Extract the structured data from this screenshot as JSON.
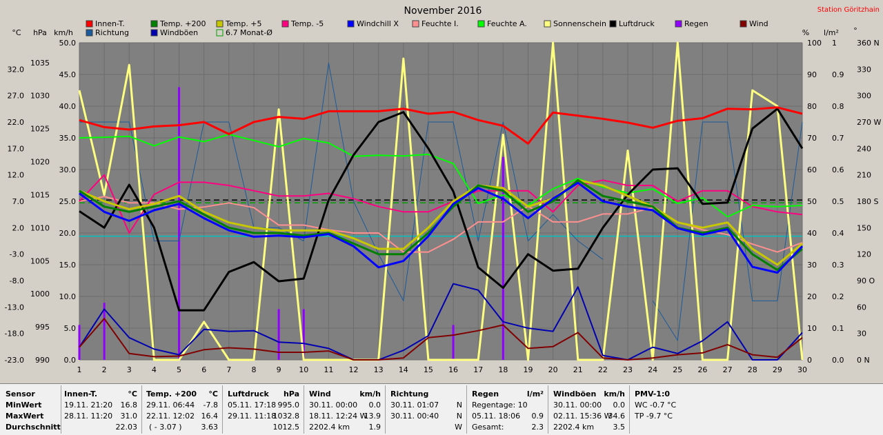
{
  "chart_data": {
    "type": "line",
    "title": "November 2016",
    "station": "Station Göritzhain",
    "x": [
      1,
      2,
      3,
      4,
      5,
      6,
      7,
      8,
      9,
      10,
      11,
      12,
      13,
      14,
      15,
      16,
      17,
      18,
      19,
      20,
      21,
      22,
      23,
      24,
      25,
      26,
      27,
      28,
      29,
      30
    ],
    "axes": {
      "left_c": {
        "unit": "°C",
        "min": -23,
        "max": 37,
        "ticks": [
          "32.0",
          "27.0",
          "22.0",
          "17.0",
          "12.0",
          "7.0",
          "2.0",
          "-3.0",
          "-8.0",
          "-13.0",
          "-18.0",
          "-23.0"
        ],
        "tick_values": [
          32,
          27,
          22,
          17,
          12,
          7,
          2,
          -3,
          -8,
          -13,
          -18,
          -23
        ]
      },
      "left_hpa": {
        "unit": "hPa",
        "min": 990,
        "max": 1038,
        "ticks": [
          "1035",
          "1030",
          "1025",
          "1020",
          "1015",
          "1010",
          "1005",
          "1000",
          "995",
          "990"
        ],
        "tick_values": [
          1035,
          1030,
          1025,
          1020,
          1015,
          1010,
          1005,
          1000,
          995,
          990
        ]
      },
      "left_kmh": {
        "unit": "km/h",
        "min": 0,
        "max": 50,
        "ticks": [
          "50.0",
          "45.0",
          "40.0",
          "35.0",
          "30.0",
          "25.0",
          "20.0",
          "15.0",
          "10.0",
          "5.0",
          "0.0"
        ],
        "tick_values": [
          50,
          45,
          40,
          35,
          30,
          25,
          20,
          15,
          10,
          5,
          0
        ]
      },
      "right_pct": {
        "unit": "%",
        "min": 0,
        "max": 100,
        "ticks": [
          "100",
          "90",
          "80",
          "70",
          "60",
          "50",
          "40",
          "30",
          "20",
          "10",
          "0"
        ],
        "tick_values": [
          100,
          90,
          80,
          70,
          60,
          50,
          40,
          30,
          20,
          10,
          0
        ]
      },
      "right_rain": {
        "unit": "l/m²",
        "min": 0,
        "max": 1,
        "ticks": [
          "1",
          "0.9",
          "0.8",
          "0.7",
          "0.6",
          "0.5",
          "0.4",
          "0.3",
          "0.2",
          "0.1",
          "0.0"
        ],
        "tick_values": [
          1,
          0.9,
          0.8,
          0.7,
          0.6,
          0.5,
          0.4,
          0.3,
          0.2,
          0.1,
          0
        ]
      },
      "right_deg": {
        "unit": "°",
        "min": 0,
        "max": 360,
        "ticks": [
          "360 N",
          "330",
          "300",
          "270 W",
          "240",
          "210",
          "180 S",
          "150",
          "120",
          "90 O",
          "60",
          "30",
          "0 N"
        ],
        "tick_values": [
          360,
          330,
          300,
          270,
          240,
          210,
          180,
          150,
          120,
          90,
          60,
          30,
          0
        ]
      }
    },
    "legend": [
      {
        "label": "Innen-T.",
        "color": "#ff0000"
      },
      {
        "label": "Temp. +200",
        "color": "#008000"
      },
      {
        "label": "Temp. +5",
        "color": "#c8c800"
      },
      {
        "label": "Temp. -5",
        "color": "#ff0080"
      },
      {
        "label": "Windchill X",
        "color": "#0000ff"
      },
      {
        "label": "Feuchte I.",
        "color": "#ff9090"
      },
      {
        "label": "Feuchte A.",
        "color": "#00ff00"
      },
      {
        "label": "Sonnenschein",
        "color": "#ffff80"
      },
      {
        "label": "Luftdruck",
        "color": "#000000"
      },
      {
        "label": "Regen",
        "color": "#9000ff"
      },
      {
        "label": "Wind",
        "color": "#800000"
      },
      {
        "label": "Richtung",
        "color": "#1a5a9a"
      },
      {
        "label": "Windböen",
        "color": "#0000b0"
      },
      {
        "label": "6.7 Monat-Ø",
        "color": "#00a000"
      }
    ],
    "series": [
      {
        "name": "Innen-T.",
        "axis": "left_kmh",
        "color": "#ff0000",
        "width": 3,
        "values": [
          37.8,
          36.7,
          36.3,
          36.8,
          37.0,
          37.5,
          35.6,
          37.5,
          38.3,
          38.0,
          39.2,
          39.2,
          39.2,
          39.6,
          38.8,
          39.1,
          37.8,
          36.9,
          34.1,
          39.0,
          38.5,
          38.0,
          37.4,
          36.6,
          37.7,
          38.1,
          39.6,
          39.5,
          39.8,
          38.8
        ]
      },
      {
        "name": "Feuchte A.",
        "axis": "right_pct",
        "color": "#00ff00",
        "width": 2,
        "values": [
          70,
          70.2,
          70.5,
          67.5,
          70.3,
          68.8,
          71.1,
          69.2,
          67.2,
          69.8,
          68.4,
          64.2,
          64.5,
          64.3,
          64.8,
          61.9,
          49.3,
          52,
          48.7,
          53.9,
          57.2,
          54.5,
          52.6,
          53.9,
          49.3,
          51.1,
          45.1,
          48.7,
          48.3,
          48.7
        ]
      },
      {
        "name": "Temp. -5",
        "axis": "left_c",
        "color": "#ff0080",
        "width": 2,
        "values": [
          7,
          12,
          1,
          8.3,
          10.6,
          10.6,
          10,
          9,
          8,
          8,
          8.5,
          7.5,
          6,
          5,
          5,
          7,
          9,
          9,
          9,
          5,
          10,
          11,
          10,
          10,
          7,
          9,
          9,
          6,
          5,
          4.5
        ]
      },
      {
        "name": "Feuchte I.",
        "axis": "right_pct",
        "color": "#ff9090",
        "width": 2,
        "values": [
          50,
          51.5,
          49.5,
          49.5,
          47.5,
          48.2,
          49.5,
          48,
          42.5,
          42.5,
          41,
          40,
          40,
          34,
          34,
          38,
          43.5,
          43.5,
          48.5,
          43.5,
          43.5,
          46,
          46,
          48,
          43.5,
          41,
          39.5,
          36.5,
          34,
          37
        ]
      },
      {
        "name": "Temp. +5",
        "axis": "left_c",
        "color": "#c8c800",
        "width": 3,
        "values": [
          9,
          7,
          5.5,
          6.5,
          8,
          5,
          3,
          2,
          1.5,
          1.5,
          1.5,
          0,
          -2,
          -2,
          2,
          7,
          10,
          9.5,
          6,
          7.5,
          11,
          10,
          8,
          6,
          3,
          2,
          3,
          -2,
          -5,
          -1
        ]
      },
      {
        "name": "Temp. +200",
        "axis": "left_c",
        "color": "#008000",
        "width": 3,
        "values": [
          9,
          6,
          5,
          6,
          7,
          4.5,
          2,
          1,
          1,
          0.5,
          1,
          -1,
          -3,
          -3,
          1,
          6,
          10,
          9,
          5,
          7,
          11,
          8,
          7,
          6,
          2,
          1,
          2,
          -3,
          -6,
          -2
        ]
      },
      {
        "name": "Windchill X",
        "axis": "left_c",
        "color": "#0000ff",
        "width": 3,
        "values": [
          8.5,
          5,
          3.3,
          5.3,
          6.5,
          3.8,
          1.5,
          0.3,
          0.5,
          0.2,
          0.8,
          -1.5,
          -5.5,
          -4.3,
          0.4,
          6.5,
          9.5,
          7.5,
          3.8,
          7.5,
          10.5,
          7,
          6,
          5.3,
          1.9,
          0.7,
          1.7,
          -5.4,
          -6.5,
          -1.5
        ]
      },
      {
        "name": "Luftdruck",
        "axis": "left_hpa",
        "color": "#000000",
        "width": 3,
        "values": [
          1012.5,
          1010,
          1016.5,
          1010,
          997.5,
          997.5,
          1003.3,
          1004.8,
          1001.9,
          1002.3,
          1014.2,
          1021,
          1026,
          1027.5,
          1022,
          1015.5,
          1004,
          1000.9,
          1006,
          1003.5,
          1003.8,
          1010,
          1015,
          1018.8,
          1019,
          1013.6,
          1013.8,
          1025,
          1028,
          1022
        ]
      },
      {
        "name": "Sonnenschein",
        "axis": "right_pct",
        "color": "#ffff80",
        "width": 3,
        "values": [
          85,
          52,
          93,
          0,
          0,
          12,
          0,
          0,
          79,
          0,
          0,
          0,
          0,
          95,
          0,
          0,
          0,
          71,
          0,
          100,
          0,
          0,
          66,
          0,
          100,
          0,
          0,
          85,
          80,
          0
        ]
      },
      {
        "name": "Windböen",
        "axis": "left_kmh",
        "color": "#0000b0",
        "width": 2,
        "values": [
          2,
          8,
          3.5,
          1.7,
          0.8,
          4.8,
          4.5,
          4.6,
          2.8,
          2.6,
          1.8,
          0,
          0,
          1.5,
          3.8,
          12,
          11,
          6,
          5,
          4.5,
          11.5,
          0.7,
          0,
          2,
          1,
          3,
          6,
          0,
          0,
          4.3
        ]
      },
      {
        "name": "Wind",
        "axis": "left_kmh",
        "color": "#800000",
        "width": 2,
        "values": [
          2,
          6.5,
          1,
          0.5,
          0.6,
          1.6,
          1.9,
          1.7,
          1.2,
          1.2,
          1.4,
          0,
          0,
          0.3,
          3.5,
          3.9,
          4.6,
          5.5,
          1.8,
          2.1,
          4.3,
          0.3,
          0,
          0.3,
          0.8,
          1.1,
          2.4,
          0.8,
          0.4,
          3.5
        ]
      },
      {
        "name": "Richtung",
        "axis": "right_deg",
        "color": "#1a5a9a",
        "width": 1,
        "values": [
          270,
          270,
          270,
          135,
          135,
          270,
          270,
          150,
          150,
          135,
          337,
          180,
          120,
          67,
          270,
          270,
          135,
          270,
          135,
          165,
          135,
          114,
          null,
          67,
          22,
          270,
          270,
          67,
          67,
          270
        ]
      }
    ],
    "rain_bars": {
      "name": "Regen",
      "axis": "right_rain",
      "color": "#9000ff",
      "x": [
        1,
        2,
        5,
        9,
        10,
        16,
        18
      ],
      "values": [
        0.11,
        0.18,
        0.86,
        0.16,
        0.16,
        0.11,
        0.64
      ]
    },
    "reference_lines": [
      {
        "axis": "left_c",
        "value": 6.7,
        "color": "#00a000",
        "dash": true
      },
      {
        "axis": "left_hpa",
        "value": 1014.2,
        "color": "#000000",
        "dash": true
      },
      {
        "axis": "left_kmh",
        "value": 19.5,
        "color": "#00c0c0",
        "dash": false
      }
    ],
    "grid": true
  },
  "footer": {
    "labels": {
      "sensor": "Sensor",
      "min": "MinWert",
      "max": "MaxWert",
      "avg": "Durchschnitt"
    },
    "innen": {
      "title": "Innen-T.",
      "unit": "°C",
      "min_t": "19.11.  21:20",
      "min_v": "16.8",
      "max_t": "28.11.  11:20",
      "max_v": "31.0",
      "avg": "22.03"
    },
    "temp": {
      "title": "Temp. +200",
      "unit": "°C",
      "min_t": "29.11.  06:44",
      "min_v": "-7.8",
      "max_t": "22.11.  12:02",
      "max_v": "16.4",
      "avg_t": "( - 3.07 )",
      "avg": "3.63"
    },
    "luft": {
      "title": "Luftdruck",
      "unit": "hPa",
      "min_t": "05.11.  17:18",
      "min_v": "995.0",
      "max_t": "29.11.  11:18",
      "max_v": "1032.8",
      "avg": "1012.5"
    },
    "wind": {
      "title": "Wind",
      "unit": "km/h",
      "min_t": "30.11.  00:00",
      "min_v": "0.0",
      "max_t": "18.11.  12:24  W",
      "max_v": "13.9",
      "avg_t": "2202.4 km",
      "avg": "1.9"
    },
    "richtung": {
      "title": "Richtung",
      "min_t": "30.11.  01:07",
      "min_v": "N",
      "max_t": "30.11.  00:40",
      "max_v": "N",
      "avg": "W"
    },
    "regen": {
      "title": "Regen",
      "unit": "l/m²",
      "min_t": "Regentage: 10",
      "max_t": "05.11.  18:06",
      "max_v": "0.9",
      "avg_t": "Gesamt:",
      "avg": "2.3"
    },
    "boen": {
      "title": "Windböen",
      "unit": "km/h",
      "min_t": "30.11.  00:00",
      "min_v": "0.0",
      "max_t": "02.11.  15:36  W",
      "max_v": "34.6",
      "avg_t": "2202.4 km",
      "avg": "3.5"
    },
    "pmv": {
      "title": "PMV-1:0",
      "wc": "WC -0.7 °C",
      "tp": "TP -9.7 °C"
    }
  }
}
